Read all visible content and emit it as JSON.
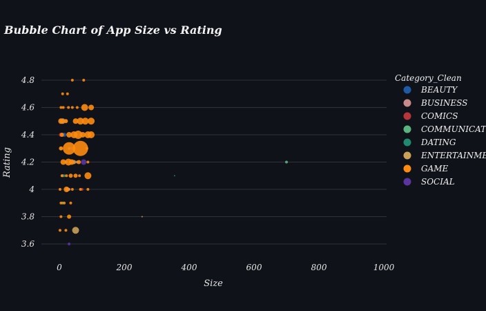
{
  "chart_data": {
    "type": "scatter",
    "title": "Bubble Chart of App Size vs Rating",
    "xlabel": "Size",
    "ylabel": "Rating",
    "xlim": [
      -30,
      1000
    ],
    "ylim": [
      3.52,
      4.9
    ],
    "x_ticks": [
      0,
      200,
      400,
      600,
      800,
      1000
    ],
    "y_ticks": [
      3.6,
      3.8,
      4.0,
      4.2,
      4.4,
      4.6,
      4.8
    ],
    "y_tick_labels": [
      "3.6",
      "3.8",
      "4",
      "4.2",
      "4.4",
      "4.6",
      "4.8"
    ],
    "grid": "horizontal",
    "legend_title": "Category_Clean",
    "legend_position": "right",
    "series": [
      {
        "name": "BEAUTY",
        "color": "#1f5aa6",
        "points": [
          [
            15,
            4.4,
            3
          ],
          [
            40,
            4.3,
            2
          ]
        ]
      },
      {
        "name": "BUSINESS",
        "color": "#c98a8a",
        "points": [
          [
            10,
            4.1,
            2
          ],
          [
            30,
            4.0,
            2
          ],
          [
            55,
            4.2,
            2
          ]
        ]
      },
      {
        "name": "COMICS",
        "color": "#b8353a",
        "points": [
          [
            5,
            4.4,
            3
          ],
          [
            20,
            4.5,
            2
          ],
          [
            70,
            4.0,
            2
          ]
        ]
      },
      {
        "name": "COMMUNICATION",
        "color": "#5bb37f",
        "points": [
          [
            700,
            4.2,
            2
          ],
          [
            10,
            3.9,
            2
          ],
          [
            30,
            4.3,
            2
          ],
          [
            20,
            4.2,
            2
          ]
        ]
      },
      {
        "name": "DATING",
        "color": "#1f8a70",
        "points": [
          [
            15,
            4.1,
            2
          ],
          [
            40,
            4.2,
            2
          ],
          [
            5,
            4.3,
            2
          ],
          [
            355,
            4.1,
            1
          ]
        ]
      },
      {
        "name": "ENTERTAINMENT",
        "color": "#c9a25a",
        "points": [
          [
            50,
            3.7,
            5
          ],
          [
            10,
            4.5,
            4
          ],
          [
            45,
            4.2,
            3
          ],
          [
            25,
            4.0,
            3
          ],
          [
            255,
            3.8,
            1
          ]
        ]
      },
      {
        "name": "GAME",
        "color": "#ff8c10",
        "points": [
          [
            40,
            4.8,
            2
          ],
          [
            75,
            4.8,
            2
          ],
          [
            10,
            4.7,
            2
          ],
          [
            25,
            4.7,
            2
          ],
          [
            5,
            4.6,
            2
          ],
          [
            12,
            4.6,
            2
          ],
          [
            28,
            4.6,
            2
          ],
          [
            40,
            4.6,
            2
          ],
          [
            55,
            4.6,
            2
          ],
          [
            78,
            4.6,
            5
          ],
          [
            98,
            4.6,
            4
          ],
          [
            5,
            4.5,
            4
          ],
          [
            20,
            4.5,
            3
          ],
          [
            50,
            4.5,
            4
          ],
          [
            65,
            4.5,
            5
          ],
          [
            80,
            4.5,
            5
          ],
          [
            98,
            4.5,
            5
          ],
          [
            8,
            4.4,
            3
          ],
          [
            30,
            4.4,
            4
          ],
          [
            45,
            4.4,
            5
          ],
          [
            58,
            4.4,
            6
          ],
          [
            72,
            4.4,
            4
          ],
          [
            88,
            4.4,
            5
          ],
          [
            98,
            4.4,
            5
          ],
          [
            30,
            4.3,
            9
          ],
          [
            65,
            4.3,
            11
          ],
          [
            5,
            4.3,
            3
          ],
          [
            85,
            4.3,
            2
          ],
          [
            12,
            4.2,
            4
          ],
          [
            28,
            4.2,
            5
          ],
          [
            38,
            4.2,
            4
          ],
          [
            60,
            4.2,
            3
          ],
          [
            88,
            4.2,
            2
          ],
          [
            8,
            4.1,
            2
          ],
          [
            22,
            4.1,
            2
          ],
          [
            35,
            4.1,
            3
          ],
          [
            50,
            4.1,
            3
          ],
          [
            62,
            4.1,
            2
          ],
          [
            88,
            4.1,
            5
          ],
          [
            2,
            4.0,
            2
          ],
          [
            22,
            4.0,
            4
          ],
          [
            40,
            4.0,
            2
          ],
          [
            65,
            4.0,
            2
          ],
          [
            88,
            4.0,
            2
          ],
          [
            5,
            3.9,
            2
          ],
          [
            15,
            3.9,
            2
          ],
          [
            35,
            3.9,
            2
          ],
          [
            5,
            3.8,
            2
          ],
          [
            30,
            3.8,
            3
          ],
          [
            2,
            3.7,
            2
          ],
          [
            20,
            3.7,
            2
          ]
        ]
      },
      {
        "name": "SOCIAL",
        "color": "#5a35a0",
        "points": [
          [
            75,
            4.2,
            4
          ],
          [
            30,
            3.6,
            2
          ]
        ]
      }
    ]
  }
}
